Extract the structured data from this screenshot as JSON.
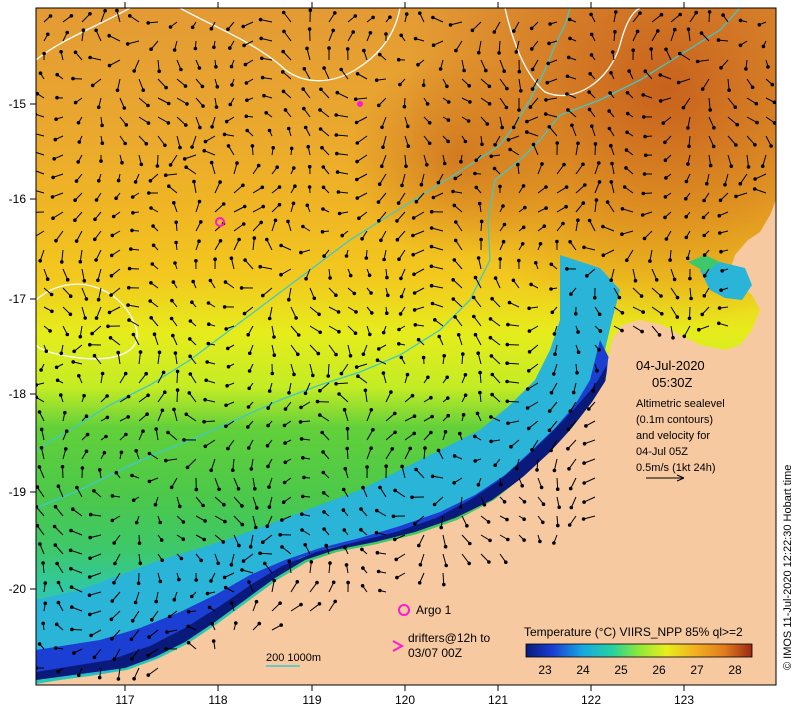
{
  "map": {
    "lat_ticks": [
      "-15",
      "-16",
      "-17",
      "-18",
      "-19",
      "-20"
    ],
    "lon_ticks": [
      "117",
      "118",
      "119",
      "120",
      "121",
      "122",
      "123"
    ],
    "colors": {
      "land": "#f7c9a0",
      "sst_warm": "#e9a33a",
      "sst_hot": "#c8641c",
      "sst_mid": "#f2bf1c",
      "sst_yellow": "#e9ef1c",
      "sst_green": "#5fcf3a",
      "sst_cyan": "#26c9b8",
      "sst_blue": "#1a3fd2",
      "sst_navy": "#0a1a7a",
      "isobath": "#3ec9c9",
      "contour": "#ffffff",
      "vector": "#000000",
      "marker": "#ff19d2"
    }
  },
  "info": {
    "date": "04-Jul-2020",
    "time": "05:30Z",
    "lines": [
      "Altimetric sealevel",
      "(0.1m contours)",
      "and velocity for",
      "04-Jul 05Z",
      "0.5m/s (1kt 24h)"
    ]
  },
  "legend": {
    "argo": "Argo 1",
    "drifters_line1": "drifters@12h to",
    "drifters_line2": "03/07 00Z",
    "isobaths": "200  1000m"
  },
  "colorbar": {
    "title": "Temperature (°C) VIIRS_NPP 85% ql>=2",
    "ticks": [
      "23",
      "24",
      "25",
      "26",
      "27",
      "28"
    ],
    "min": 22.5,
    "max": 28.5
  },
  "credit": "© IMOS 11-Jul-2020 12:22:30 Hobart time"
}
